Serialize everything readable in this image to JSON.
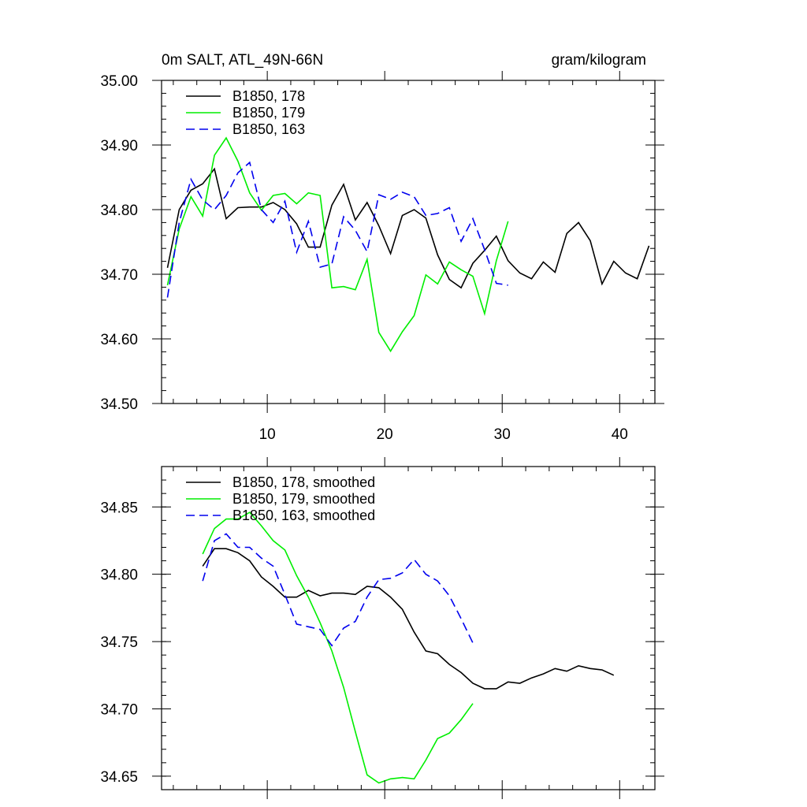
{
  "chart_data": [
    {
      "type": "line",
      "title_left": "0m SALT, ATL_49N-66N",
      "title_right": "gram/kilogram",
      "xlabel": "",
      "ylabel": "",
      "xlim": [
        1,
        43
      ],
      "ylim": [
        34.5,
        35.0
      ],
      "xticks": [
        10,
        20,
        30,
        40
      ],
      "xtick_labels": [
        "10",
        "20",
        "30",
        "40"
      ],
      "yticks": [
        34.5,
        34.6,
        34.7,
        34.8,
        34.9,
        35.0
      ],
      "ytick_labels": [
        "34.50",
        "34.60",
        "34.70",
        "34.80",
        "34.90",
        "35.00"
      ],
      "legend_position": "top-left",
      "series": [
        {
          "name": "B1850, 178",
          "color": "#000000",
          "dash": "solid",
          "x": [
            1.5,
            2.5,
            3.5,
            4.5,
            5.5,
            6.5,
            7.5,
            8.5,
            9.5,
            10.5,
            11.5,
            12.5,
            13.5,
            14.5,
            15.5,
            16.5,
            17.5,
            18.5,
            19.5,
            20.5,
            21.5,
            22.5,
            23.5,
            24.5,
            25.5,
            26.5,
            27.5,
            28.5,
            29.5,
            30.5,
            31.5,
            32.5,
            33.5,
            34.5,
            35.5,
            36.5,
            37.5,
            38.5,
            39.5,
            40.5,
            41.5,
            42.5
          ],
          "values": [
            34.71,
            34.8,
            34.83,
            34.84,
            34.863,
            34.786,
            34.803,
            34.804,
            34.804,
            34.811,
            34.8,
            34.778,
            34.742,
            34.742,
            34.807,
            34.839,
            34.784,
            34.811,
            34.775,
            34.732,
            34.791,
            34.8,
            34.787,
            34.73,
            34.692,
            34.679,
            34.717,
            34.737,
            34.759,
            34.721,
            34.702,
            34.693,
            34.719,
            34.703,
            34.763,
            34.78,
            34.752,
            34.685,
            34.72,
            34.702,
            34.693,
            34.744
          ]
        },
        {
          "name": "B1850, 179",
          "color": "#00ee00",
          "dash": "solid",
          "x": [
            1.5,
            2.5,
            3.5,
            4.5,
            5.5,
            6.5,
            7.5,
            8.5,
            9.5,
            10.5,
            11.5,
            12.5,
            13.5,
            14.5,
            15.5,
            16.5,
            17.5,
            18.5,
            19.5,
            20.5,
            21.5,
            22.5,
            23.5,
            24.5,
            25.5,
            26.5,
            27.5,
            28.5,
            29.5,
            30.5
          ],
          "values": [
            34.683,
            34.77,
            34.82,
            34.79,
            34.884,
            34.911,
            34.875,
            34.826,
            34.799,
            34.822,
            34.825,
            34.809,
            34.826,
            34.822,
            34.679,
            34.681,
            34.676,
            34.723,
            34.61,
            34.581,
            34.611,
            34.636,
            34.699,
            34.685,
            34.719,
            34.707,
            34.697,
            34.639,
            34.721,
            34.782
          ]
        },
        {
          "name": "B1850, 163",
          "color": "#0000ee",
          "dash": "dashed",
          "x": [
            1.5,
            2.5,
            3.5,
            4.5,
            5.5,
            6.5,
            7.5,
            8.5,
            9.5,
            10.5,
            11.5,
            12.5,
            13.5,
            14.5,
            15.5,
            16.5,
            17.5,
            18.5,
            19.5,
            20.5,
            21.5,
            22.5,
            23.5,
            24.5,
            25.5,
            26.5,
            27.5,
            28.5,
            29.5,
            30.5
          ],
          "values": [
            34.664,
            34.78,
            34.847,
            34.815,
            34.8,
            34.822,
            34.857,
            34.873,
            34.8,
            34.78,
            34.813,
            34.734,
            34.782,
            34.711,
            34.716,
            34.789,
            34.768,
            34.735,
            34.823,
            34.816,
            34.827,
            34.82,
            34.791,
            34.794,
            34.803,
            34.751,
            34.786,
            34.738,
            34.686,
            34.683
          ]
        }
      ]
    },
    {
      "type": "line",
      "xlabel": "",
      "ylabel": "",
      "xlim": [
        1,
        43
      ],
      "ylim": [
        34.64,
        34.88
      ],
      "xticks": [
        10,
        20,
        30,
        40
      ],
      "yticks": [
        34.65,
        34.7,
        34.75,
        34.8,
        34.85
      ],
      "ytick_labels": [
        "34.65",
        "34.70",
        "34.75",
        "34.80",
        "34.85"
      ],
      "legend_position": "top-left",
      "series": [
        {
          "name": "B1850, 178, smoothed",
          "color": "#000000",
          "dash": "solid",
          "x": [
            4.5,
            5.5,
            6.5,
            7.5,
            8.5,
            9.5,
            10.5,
            11.5,
            12.5,
            13.5,
            14.5,
            15.5,
            16.5,
            17.5,
            18.5,
            19.5,
            20.5,
            21.5,
            22.5,
            23.5,
            24.5,
            25.5,
            26.5,
            27.5,
            28.5,
            29.5,
            30.5,
            31.5,
            32.5,
            33.5,
            34.5,
            35.5,
            36.5,
            37.5,
            38.5,
            39.5
          ],
          "values": [
            34.806,
            34.819,
            34.819,
            34.816,
            34.81,
            34.798,
            34.791,
            34.783,
            34.783,
            34.788,
            34.784,
            34.786,
            34.786,
            34.785,
            34.791,
            34.79,
            34.783,
            34.774,
            34.757,
            34.743,
            34.741,
            34.733,
            34.727,
            34.719,
            34.715,
            34.715,
            34.72,
            34.719,
            34.723,
            34.726,
            34.73,
            34.728,
            34.732,
            34.73,
            34.729,
            34.725
          ]
        },
        {
          "name": "B1850, 179, smoothed",
          "color": "#00ee00",
          "dash": "solid",
          "x": [
            4.5,
            5.5,
            6.5,
            7.5,
            8.5,
            9.5,
            10.5,
            11.5,
            12.5,
            13.5,
            14.5,
            15.5,
            16.5,
            17.5,
            18.5,
            19.5,
            20.5,
            21.5,
            22.5,
            23.5,
            24.5,
            25.5,
            26.5,
            27.5
          ],
          "values": [
            34.815,
            34.834,
            34.841,
            34.841,
            34.846,
            34.836,
            34.825,
            34.818,
            34.799,
            34.783,
            34.764,
            34.743,
            34.716,
            34.683,
            34.651,
            34.645,
            34.648,
            34.649,
            34.648,
            34.662,
            34.678,
            34.682,
            34.692,
            34.704
          ]
        },
        {
          "name": "B1850, 163, smoothed",
          "color": "#0000ee",
          "dash": "dashed",
          "x": [
            4.5,
            5.5,
            6.5,
            7.5,
            8.5,
            9.5,
            10.5,
            11.5,
            12.5,
            13.5,
            14.5,
            15.5,
            16.5,
            17.5,
            18.5,
            19.5,
            20.5,
            21.5,
            22.5,
            23.5,
            24.5,
            25.5,
            26.5,
            27.5
          ],
          "values": [
            34.795,
            34.825,
            34.83,
            34.82,
            34.82,
            34.812,
            34.806,
            34.785,
            34.763,
            34.761,
            34.759,
            34.747,
            34.76,
            34.765,
            34.783,
            34.796,
            34.797,
            34.801,
            34.811,
            34.8,
            34.795,
            34.784,
            34.767,
            34.749
          ]
        }
      ]
    }
  ]
}
